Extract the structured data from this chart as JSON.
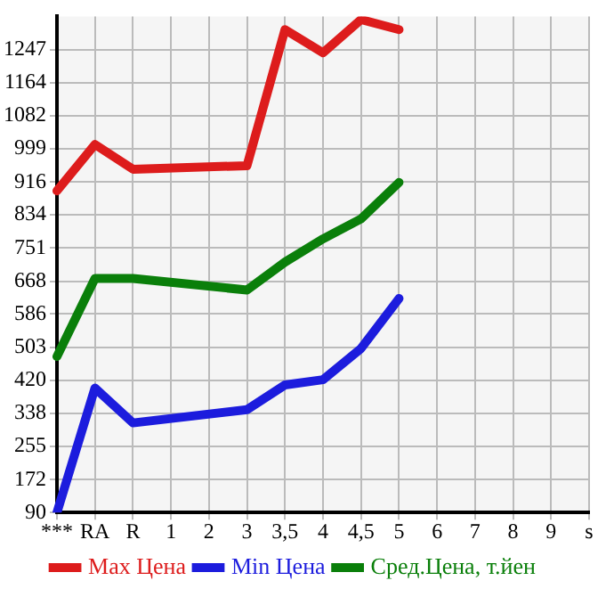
{
  "chart_data": {
    "type": "line",
    "categories": [
      "***",
      "RA",
      "R",
      "1",
      "2",
      "3",
      "3,5",
      "4",
      "4,5",
      "5",
      "6",
      "7",
      "8",
      "9",
      "s"
    ],
    "series": [
      {
        "name": "Max Цена",
        "color": "#dd1c1c",
        "values": [
          894,
          1010,
          948,
          null,
          null,
          957,
          1297,
          1239,
          1322,
          1297,
          null,
          null,
          null,
          null,
          null
        ]
      },
      {
        "name": "Min Цена",
        "color": "#1c1cdd",
        "values": [
          90,
          401,
          314,
          null,
          null,
          347,
          409,
          422,
          500,
          625,
          null,
          null,
          null,
          null,
          null
        ]
      },
      {
        "name": "Сред.Цена, т.йен",
        "color": "#0a7f0a",
        "values": [
          480,
          675,
          675,
          null,
          null,
          646,
          716,
          774,
          824,
          915,
          null,
          null,
          null,
          null,
          null
        ]
      }
    ],
    "ylim": [
      90,
      1330
    ],
    "yticks": [
      90,
      172,
      255,
      338,
      420,
      503,
      586,
      668,
      751,
      834,
      916,
      999,
      1082,
      1164,
      1247
    ],
    "grid": true,
    "legend": "bottom",
    "marker": "none",
    "line_style": "solid"
  }
}
